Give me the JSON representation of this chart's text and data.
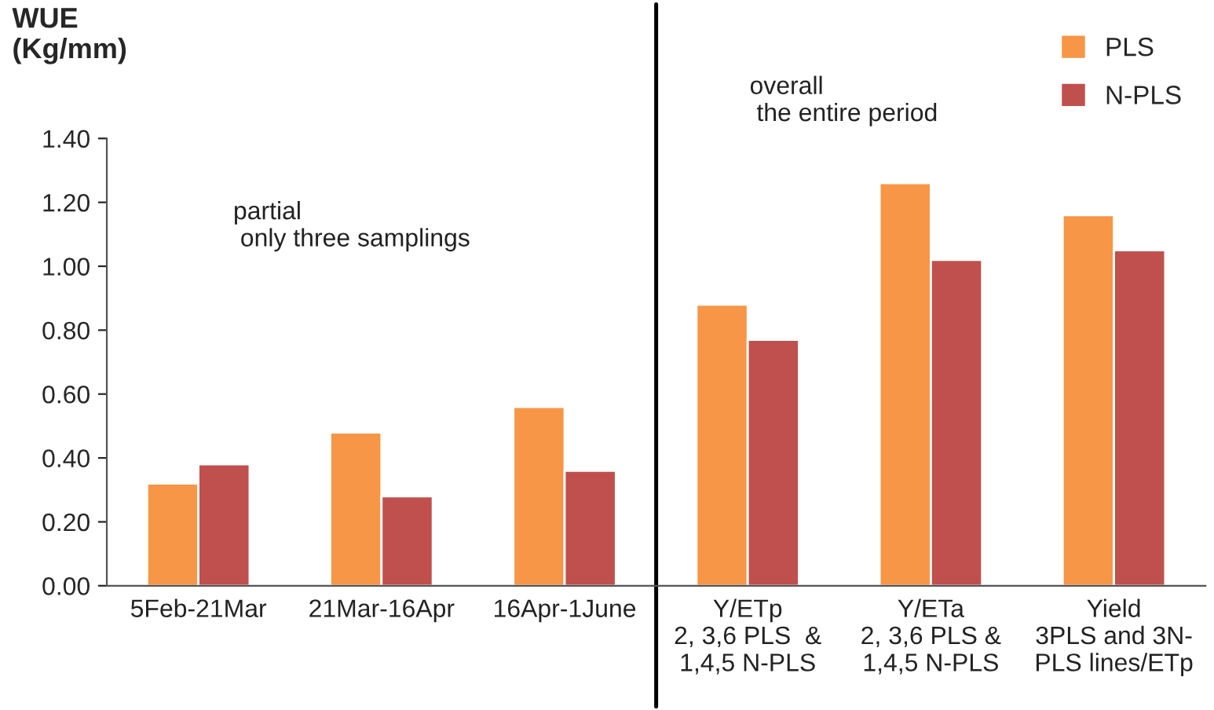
{
  "chart_data": {
    "type": "bar",
    "ylabel": "WUE\n(Kg/mm)",
    "categories": [
      "5Feb-21Mar",
      "21Mar-16Apr",
      "16Apr-1June",
      "Y/ETp\n2, 3,6 PLS  &\n1,4,5 N-PLS",
      "Y/ETa\n2, 3,6 PLS &\n1,4,5 N-PLS",
      "Yield\n3PLS and 3N-\nPLS lines/ETp"
    ],
    "series": [
      {
        "name": "PLS",
        "color": "#f79646",
        "values": [
          0.32,
          0.48,
          0.56,
          0.88,
          1.26,
          1.16
        ]
      },
      {
        "name": "N-PLS",
        "color": "#c0504d",
        "values": [
          0.38,
          0.28,
          0.36,
          0.77,
          1.02,
          1.05
        ]
      }
    ],
    "ylim": [
      0,
      1.4
    ],
    "yticks": [
      {
        "value": 0,
        "label": "0.00"
      },
      {
        "value": 0.2,
        "label": "0.20"
      },
      {
        "value": 0.4,
        "label": "0.40"
      },
      {
        "value": 0.6,
        "label": "0.60"
      },
      {
        "value": 0.8,
        "label": "0.80"
      },
      {
        "value": 1.0,
        "label": "1.00"
      },
      {
        "value": 1.2,
        "label": "1.20"
      },
      {
        "value": 1.4,
        "label": "1.40"
      }
    ],
    "annotations": [
      "partial\n only three samplings",
      "overall\n the entire period"
    ],
    "grid": false,
    "legend": "top right"
  }
}
